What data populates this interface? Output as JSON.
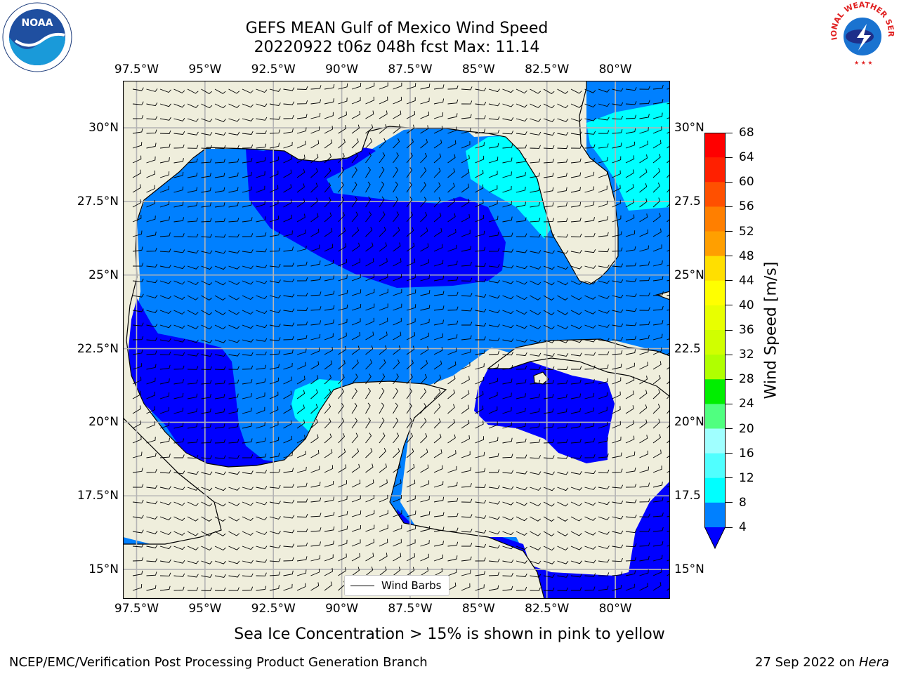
{
  "title": {
    "line1": "GEFS MEAN Gulf of Mexico Wind Speed",
    "line2": "20220922 t06z 048h fcst   Max: 11.14"
  },
  "logos": {
    "left_name": "NOAA",
    "right_text": "NATIONAL WEATHER SERVICE"
  },
  "map": {
    "lon_ticks": [
      "97.5°W",
      "95°W",
      "92.5°W",
      "90°W",
      "87.5°W",
      "85°W",
      "82.5°W",
      "80°W"
    ],
    "lat_ticks_left": [
      "30°N",
      "27.5°N",
      "25°N",
      "22.5°N",
      "20°N",
      "17.5°N",
      "15°N"
    ],
    "lat_ticks_right": [
      "30°N",
      "27.5",
      "25°N",
      "22.5",
      "20°N",
      "17.5",
      "15°N"
    ],
    "lon_range": [
      -98,
      -78
    ],
    "lat_range": [
      14,
      31.6
    ],
    "grid": true,
    "colors": {
      "land": "#efeedc",
      "band_4_8": "#0080ff",
      "band_below_4": "#0000ff",
      "band_8_12": "#00ffff",
      "grid": "#b4b4b4"
    },
    "legend": {
      "label": "Wind Barbs",
      "position": "bottom-center"
    }
  },
  "colorbar": {
    "label": "Wind Speed [m/s]",
    "ticks": [
      "68",
      "64",
      "60",
      "56",
      "52",
      "48",
      "44",
      "40",
      "36",
      "32",
      "28",
      "24",
      "20",
      "16",
      "12",
      "8",
      "4"
    ],
    "colors": [
      "#ff0000",
      "#ff2000",
      "#ff5000",
      "#ff7f00",
      "#ff9f00",
      "#ffbf00",
      "#ffdf00",
      "#ffff00",
      "#e8ff00",
      "#d0ff00",
      "#b0ff00",
      "#60ff00",
      "#00ee00",
      "#00dd00",
      "#50ff80",
      "#a0ffff",
      "#50ffff",
      "#00ffff",
      "#0080ff"
    ],
    "extend_color": "#0000ff"
  },
  "note": "Sea Ice Concentration > 15% is shown in pink to yellow",
  "footer": {
    "left": "NCEP/EMC/Verification Post Processing Product Generation Branch",
    "date": "27 Sep 2022 on ",
    "machine": "Hera"
  }
}
